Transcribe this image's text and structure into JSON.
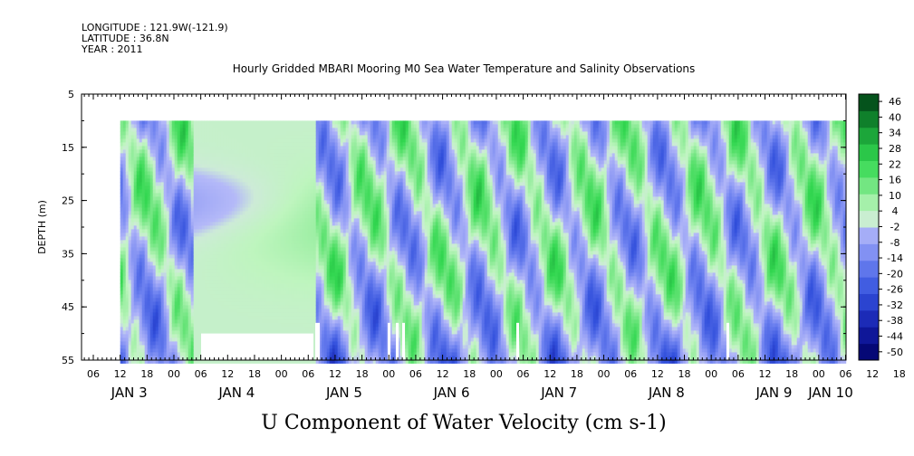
{
  "header": {
    "longitude": "LONGITUDE : 121.9W(-121.9)",
    "latitude": "LATITUDE : 36.8N",
    "year": "YEAR : 2011"
  },
  "chart_data": {
    "type": "heatmap",
    "title": "Hourly Gridded MBARI Mooring M0 Sea Water Temperature and Salinity Observations",
    "xlabel": "U Component of Water Velocity (cm s-1)",
    "ylabel": "DEPTH (m)",
    "ylim": [
      5,
      55
    ],
    "y_inverted": true,
    "y_ticks": [
      5,
      15,
      25,
      35,
      45,
      55
    ],
    "x_hour_tick_labels": [
      "06",
      "12",
      "18",
      "00",
      "06",
      "12",
      "18",
      "00",
      "06",
      "12",
      "18",
      "00",
      "06",
      "12",
      "18",
      "00",
      "06",
      "12",
      "18",
      "00",
      "06",
      "12",
      "18",
      "00",
      "06",
      "12",
      "18",
      "00",
      "06",
      "12",
      "18",
      "00"
    ],
    "x_day_labels": [
      "JAN  3",
      "JAN  4",
      "JAN  5",
      "JAN  6",
      "JAN  7",
      "JAN  8",
      "JAN  9",
      "JAN 10"
    ],
    "colorbar_levels": [
      -50,
      -44,
      -38,
      -32,
      -26,
      -20,
      -14,
      -8,
      -2,
      4,
      10,
      16,
      22,
      28,
      34,
      40,
      46
    ],
    "colorbar_labels": [
      "46",
      "40",
      "34",
      "28",
      "22",
      "16",
      "10",
      "4",
      "-2",
      "-8",
      "-14",
      "-20",
      "-26",
      "-32",
      "-38",
      "-44",
      "-50"
    ],
    "colors": {
      "strong_negative": "#000066",
      "mid_negative": "#3355dd",
      "weak_negative": "#aab0f5",
      "weak_positive": "#bff5bf",
      "mid_positive": "#44e060",
      "strong_positive": "#003300"
    },
    "data_depth_range_m": [
      10,
      55
    ],
    "description_bands": [
      {
        "day": "JAN 3",
        "pattern": "alternating"
      },
      {
        "day": "JAN 4",
        "pattern": "interpolated gap, weak"
      },
      {
        "day": "JAN 5",
        "pattern": "alternating"
      },
      {
        "day": "JAN 6",
        "pattern": "alternating"
      },
      {
        "day": "JAN 7",
        "pattern": "alternating"
      },
      {
        "day": "JAN 8",
        "pattern": "alternating"
      },
      {
        "day": "JAN 9",
        "pattern": "alternating"
      }
    ]
  }
}
